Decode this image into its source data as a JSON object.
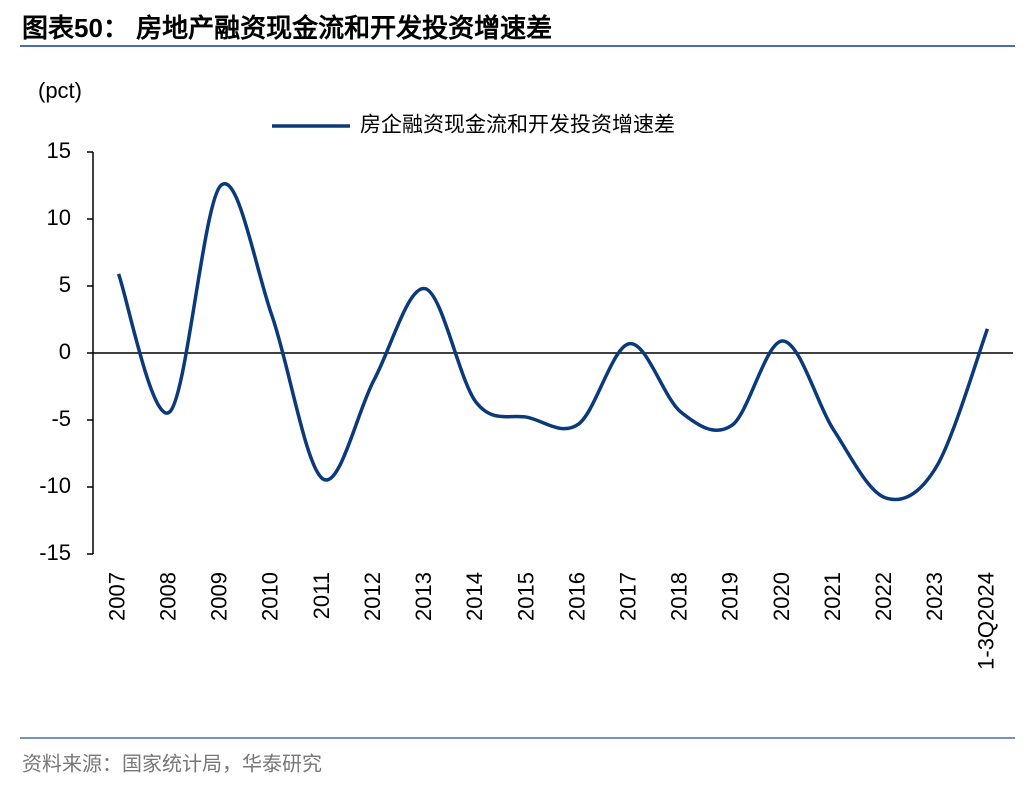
{
  "chart_data": {
    "type": "line",
    "title": "图表50： 房地产融资现金流和开发投资增速差",
    "y_label": "(pct)",
    "categories": [
      "2007",
      "2008",
      "2009",
      "2010",
      "2011",
      "2012",
      "2013",
      "2014",
      "2015",
      "2016",
      "2017",
      "2018",
      "2019",
      "2020",
      "2021",
      "2022",
      "2023",
      "1-3Q2024"
    ],
    "series": [
      {
        "name": "房企融资现金流和开发投资增速差",
        "color": "#0b3a7a",
        "values": [
          5.9,
          -4.4,
          12.5,
          2.8,
          -9.4,
          -2.0,
          4.8,
          -3.7,
          -4.8,
          -5.3,
          0.7,
          -4.4,
          -5.4,
          0.9,
          -5.8,
          -10.8,
          -8.5,
          1.8
        ]
      }
    ],
    "ylim": [
      -15,
      15
    ],
    "yticks": [
      -15,
      -10,
      -5,
      0,
      5,
      10,
      15
    ],
    "source": "资料来源：国家统计局，华泰研究"
  }
}
